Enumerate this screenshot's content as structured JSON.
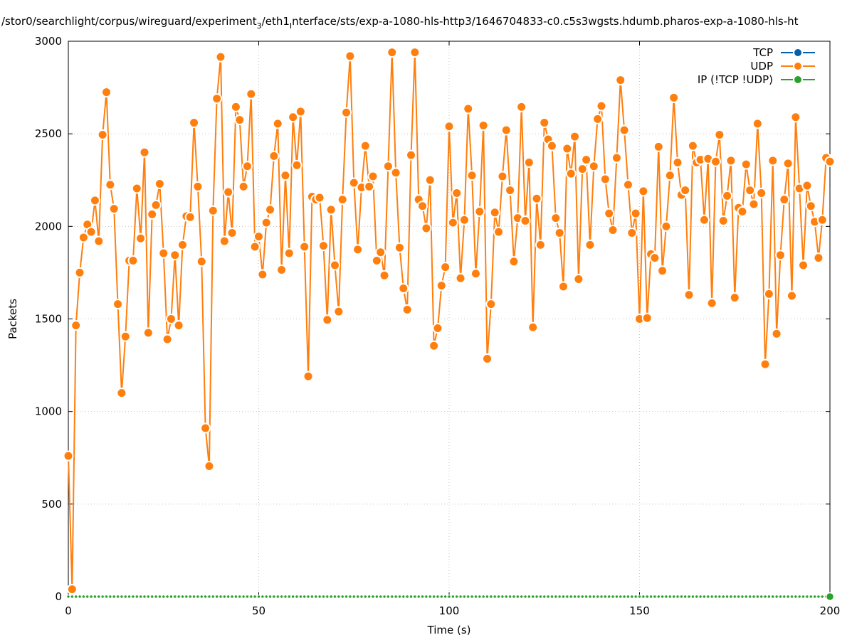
{
  "chart_data": {
    "type": "line",
    "title": "/stor0/searchlight/corpus/wireguard/experiment_3/eth1_interface/sts/exp-a-1080-hls-http3/1646704833-c0.c5s3wgsts.hdumb.pharos-exp-a-1080-hls-ht",
    "title_parts": {
      "a": "/stor0/searchlight/corpus/wireguard/experiment",
      "sub": "3",
      "b": "/eth1",
      "i": "I",
      "c": "nterface/sts/exp-a-1080-hls-http3/1646704833-c0.c5s3wgsts.hdumb.pharos-exp-a-1080-hls-ht"
    },
    "xlabel": "Time (s)",
    "ylabel": "Packets",
    "xlim": [
      0,
      200
    ],
    "ylim": [
      0,
      3000
    ],
    "xticks": [
      "0",
      "50",
      "100",
      "150",
      "200"
    ],
    "yticks": [
      "0",
      "500",
      "1000",
      "1500",
      "2000",
      "2500",
      "3000"
    ],
    "grid": true,
    "legend_position": "top-right",
    "series": [
      {
        "name": "TCP",
        "color": "#0060ad",
        "values": []
      },
      {
        "name": "UDP",
        "color": "#ff7f0e",
        "x_start": 0,
        "x_step": 1,
        "values": [
          760,
          40,
          1465,
          1750,
          1940,
          2010,
          1970,
          2140,
          1920,
          2495,
          2725,
          2225,
          2095,
          1580,
          1100,
          1405,
          1815,
          1815,
          2205,
          1935,
          2400,
          1425,
          2065,
          2115,
          2230,
          1855,
          1390,
          1500,
          1845,
          1465,
          1900,
          2055,
          2050,
          2560,
          2215,
          1810,
          910,
          705,
          2085,
          2690,
          2915,
          1920,
          2185,
          1965,
          2645,
          2575,
          2215,
          2325,
          2715,
          1890,
          1945,
          1740,
          2020,
          2090,
          2380,
          2555,
          1765,
          2275,
          1855,
          2590,
          2330,
          2620,
          1890,
          1190,
          2160,
          2145,
          2155,
          1895,
          1495,
          2090,
          1790,
          1540,
          2145,
          2615,
          2920,
          2235,
          1875,
          2210,
          2435,
          2215,
          2270,
          1815,
          1860,
          1735,
          2325,
          2940,
          2290,
          1885,
          1665,
          1550,
          2385,
          2940,
          2145,
          2110,
          1990,
          2250,
          1355,
          1450,
          1680,
          1780,
          2540,
          2020,
          2180,
          1720,
          2035,
          2635,
          2275,
          1745,
          2080,
          2545,
          1285,
          1580,
          2075,
          1970,
          2270,
          2520,
          2195,
          1810,
          2045,
          2645,
          2030,
          2345,
          1455,
          2150,
          1900,
          2560,
          2470,
          2435,
          2045,
          1965,
          1675,
          2420,
          2285,
          2485,
          1715,
          2310,
          2360,
          1900,
          2325,
          2580,
          2650,
          2255,
          2070,
          1980,
          2370,
          2790,
          2520,
          2225,
          1965,
          2070,
          1500,
          2190,
          1505,
          1850,
          1830,
          2430,
          1760,
          2000,
          2275,
          2695,
          2345,
          2170,
          2195,
          1630,
          2435,
          2345,
          2360,
          2035,
          2365,
          1585,
          2350,
          2495,
          2030,
          2165,
          2355,
          1615,
          2100,
          2080,
          2335,
          2195,
          2120,
          2555,
          2180,
          1255,
          1635,
          2355,
          1420,
          1845,
          2145,
          2340,
          1625,
          2590,
          2205,
          1790,
          2220,
          2110,
          2025,
          1830,
          2035,
          2370,
          2350
        ]
      },
      {
        "name": "IP (!TCP  !UDP)",
        "color": "#2ca02c",
        "x_start": 0,
        "x_step": 1,
        "values": "all 0 for x = 0..200"
      }
    ]
  }
}
